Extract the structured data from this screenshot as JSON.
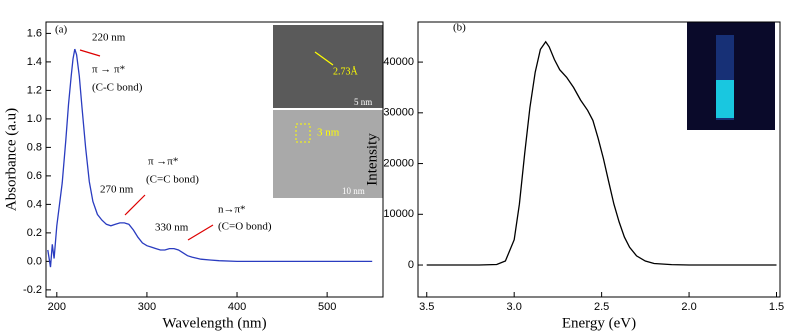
{
  "chart_data": [
    {
      "type": "line",
      "x_label": "Wavelength (nm)",
      "y_label": "Absorbance (a.u)",
      "x": [
        190,
        193,
        195,
        197,
        200,
        203,
        206,
        210,
        213,
        216,
        218,
        220,
        222,
        225,
        228,
        232,
        236,
        240,
        245,
        250,
        255,
        260,
        265,
        270,
        275,
        280,
        285,
        290,
        295,
        300,
        305,
        310,
        315,
        320,
        325,
        330,
        335,
        340,
        345,
        350,
        360,
        370,
        380,
        400,
        450,
        500,
        550
      ],
      "values": [
        0.08,
        -0.04,
        0.12,
        0.02,
        0.25,
        0.4,
        0.55,
        0.85,
        1.1,
        1.3,
        1.42,
        1.49,
        1.45,
        1.3,
        1.08,
        0.8,
        0.56,
        0.42,
        0.33,
        0.29,
        0.26,
        0.25,
        0.26,
        0.27,
        0.27,
        0.26,
        0.22,
        0.17,
        0.13,
        0.11,
        0.1,
        0.09,
        0.08,
        0.08,
        0.09,
        0.09,
        0.08,
        0.06,
        0.04,
        0.03,
        0.015,
        0.01,
        0.005,
        0.0,
        0.0,
        0.0,
        0.0
      ],
      "color": "#2a3cc0",
      "xlim": [
        188,
        562
      ],
      "ylim": [
        -0.25,
        1.68
      ],
      "xticks": [
        200,
        300,
        400,
        500
      ],
      "yticks": [
        -0.2,
        {
          "value": 0,
          "label": "0.0"
        },
        0.2,
        0.4,
        0.6,
        0.8,
        {
          "value": 1,
          "label": "1.0"
        },
        1.2,
        1.4,
        1.6
      ],
      "annotations": [
        "(a)",
        "220 nm",
        "π → π*",
        "(C-C bond)",
        "π →π*",
        "(C=C bond)",
        "270 nm",
        "330 nm",
        "n→π*",
        "(C=O bond)",
        "2.73Å",
        "5 nm",
        "3 nm",
        "10 nm"
      ]
    },
    {
      "type": "line",
      "x_label": "Energy (eV)",
      "y_label": "Intensity",
      "x": [
        3.5,
        3.2,
        3.1,
        3.05,
        3.0,
        2.97,
        2.94,
        2.91,
        2.88,
        2.85,
        2.82,
        2.8,
        2.77,
        2.74,
        2.7,
        2.66,
        2.62,
        2.58,
        2.55,
        2.52,
        2.49,
        2.46,
        2.43,
        2.4,
        2.37,
        2.34,
        2.3,
        2.25,
        2.2,
        2.1,
        2.0,
        1.8,
        1.5
      ],
      "values": [
        0,
        0,
        100,
        800,
        5000,
        12000,
        22000,
        31000,
        38000,
        42500,
        44000,
        43000,
        40500,
        38500,
        37000,
        35000,
        32500,
        30500,
        28500,
        25000,
        21000,
        16500,
        12000,
        8500,
        5500,
        3500,
        1800,
        800,
        300,
        80,
        0,
        0,
        0
      ],
      "color": "#000000",
      "xlim": [
        3.55,
        1.48
      ],
      "ylim": [
        -6300,
        47900
      ],
      "xticks": [
        3.5,
        {
          "value": 3,
          "label": "3.0"
        },
        2.5,
        {
          "value": 2,
          "label": "2.0"
        },
        1.5
      ],
      "yticks": [
        0,
        10000,
        20000,
        30000,
        40000
      ],
      "annotations": [
        "(b)"
      ]
    }
  ]
}
